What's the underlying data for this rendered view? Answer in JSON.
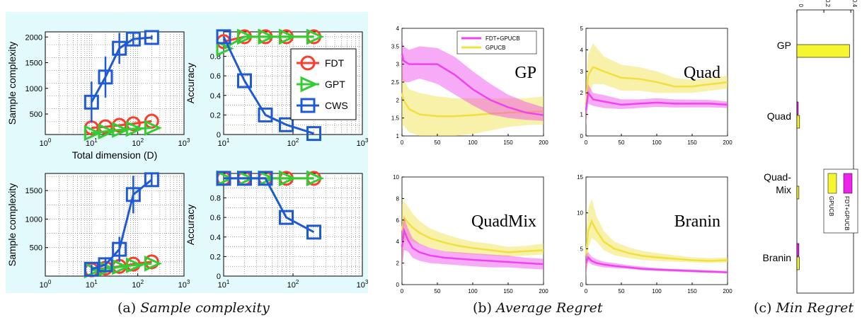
{
  "captions": {
    "a_prefix": "(a)",
    "a_text": "Sample complexity",
    "b_prefix": "(b)",
    "b_text": "Average Regret",
    "c_prefix": "(c)",
    "c_text": "Min Regret"
  },
  "chart_data": [
    {
      "id": "sc-top",
      "type": "line",
      "log_x": true,
      "xlim": [
        1,
        1000
      ],
      "ylim": [
        100,
        2100
      ],
      "xticks": [
        "10^0",
        "10^1",
        "10^2",
        "10^3"
      ],
      "yticks": [
        500,
        1000,
        1500,
        2000
      ],
      "xlabel": "Total dimension (D)",
      "ylabel": "Sample complexity",
      "grid": true,
      "series": [
        {
          "name": "FDT",
          "color": "#ff3b2a",
          "marker": "circle",
          "x": [
            10,
            20,
            40,
            80,
            200
          ],
          "y": [
            230,
            250,
            280,
            310,
            360
          ]
        },
        {
          "name": "GPT",
          "color": "#33cc33",
          "marker": "triangle",
          "x": [
            10,
            20,
            40,
            80,
            200
          ],
          "y": [
            130,
            160,
            190,
            210,
            230
          ]
        },
        {
          "name": "CWS",
          "color": "#1f5ad6",
          "marker": "square",
          "x": [
            10,
            20,
            40,
            80,
            200
          ],
          "y": [
            730,
            1220,
            1780,
            1960,
            1990
          ],
          "err": [
            400,
            400,
            300,
            120,
            40
          ]
        }
      ]
    },
    {
      "id": "acc-top",
      "type": "line",
      "log_x": true,
      "xlim": [
        10,
        1000
      ],
      "ylim": [
        0,
        1.05
      ],
      "xticks": [
        "10^1",
        "10^2",
        "10^3"
      ],
      "yticks": [
        0,
        0.2,
        0.4,
        0.6,
        0.8
      ],
      "ylabel": "Accuracy",
      "grid": true,
      "legend": [
        "FDT",
        "GPT",
        "CWS"
      ],
      "legend_position": "right",
      "series": [
        {
          "name": "FDT",
          "color": "#ff3b2a",
          "marker": "circle",
          "x": [
            10,
            20,
            40,
            80,
            200
          ],
          "y": [
            0.95,
            1.0,
            1.0,
            1.0,
            1.0
          ]
        },
        {
          "name": "GPT",
          "color": "#33cc33",
          "marker": "triangle",
          "x": [
            10,
            20,
            40,
            80,
            200
          ],
          "y": [
            0.88,
            1.0,
            1.0,
            1.0,
            1.0
          ]
        },
        {
          "name": "CWS",
          "color": "#1f5ad6",
          "marker": "square",
          "x": [
            10,
            20,
            40,
            80,
            200
          ],
          "y": [
            1.0,
            0.55,
            0.2,
            0.1,
            0.01
          ]
        }
      ]
    },
    {
      "id": "sc-bot",
      "type": "line",
      "log_x": true,
      "xlim": [
        1,
        1000
      ],
      "ylim": [
        0,
        1800
      ],
      "xticks": [
        "10^0",
        "10^1",
        "10^2",
        "10^3"
      ],
      "yticks": [
        500,
        1000,
        1500
      ],
      "ylabel": "Sample complexity",
      "grid": true,
      "series": [
        {
          "name": "FDT",
          "color": "#ff3b2a",
          "marker": "circle",
          "x": [
            10,
            20,
            40,
            80,
            200
          ],
          "y": [
            110,
            140,
            170,
            210,
            250
          ]
        },
        {
          "name": "GPT",
          "color": "#33cc33",
          "marker": "triangle",
          "x": [
            10,
            20,
            40,
            80,
            200
          ],
          "y": [
            100,
            130,
            160,
            190,
            220
          ]
        },
        {
          "name": "CWS",
          "color": "#1f5ad6",
          "marker": "square",
          "x": [
            10,
            20,
            40,
            80,
            200
          ],
          "y": [
            120,
            200,
            470,
            1430,
            1690
          ],
          "err": [
            80,
            130,
            220,
            330,
            120
          ]
        }
      ]
    },
    {
      "id": "acc-bot",
      "type": "line",
      "log_x": true,
      "xlim": [
        10,
        1000
      ],
      "ylim": [
        0,
        1.05
      ],
      "xticks": [
        "10^1",
        "10^2",
        "10^3"
      ],
      "yticks": [
        0,
        0.2,
        0.4,
        0.6,
        0.8
      ],
      "ylabel": "Accuracy",
      "grid": true,
      "series": [
        {
          "name": "FDT",
          "color": "#ff3b2a",
          "marker": "circle",
          "x": [
            10,
            20,
            40,
            80,
            200
          ],
          "y": [
            1.0,
            1.0,
            1.0,
            1.0,
            1.0
          ]
        },
        {
          "name": "GPT",
          "color": "#33cc33",
          "marker": "triangle",
          "x": [
            10,
            20,
            40,
            80,
            200
          ],
          "y": [
            1.0,
            1.0,
            1.0,
            1.0,
            1.0
          ]
        },
        {
          "name": "CWS",
          "color": "#1f5ad6",
          "marker": "square",
          "x": [
            10,
            20,
            40,
            80,
            200
          ],
          "y": [
            1.0,
            1.0,
            1.0,
            0.6,
            0.45
          ]
        }
      ]
    },
    {
      "id": "reg-gp",
      "type": "area",
      "title": "GP",
      "xlim": [
        0,
        200
      ],
      "ylim": [
        1,
        4
      ],
      "xticks": [
        0,
        50,
        100,
        150,
        200
      ],
      "yticks": [
        1,
        1.5,
        2,
        2.5,
        3,
        3.5,
        4
      ],
      "legend": [
        "FDT+GPUCB",
        "GPUCB"
      ],
      "legend_position": "top-left",
      "series": [
        {
          "name": "FDT+GPUCB",
          "color": "#ee44ee",
          "x": [
            0,
            2,
            10,
            25,
            50,
            75,
            100,
            125,
            150,
            175,
            200
          ],
          "mean": [
            3.3,
            3.1,
            3.0,
            3.0,
            3.0,
            2.7,
            2.3,
            2.0,
            1.8,
            1.65,
            1.58
          ],
          "lo": [
            2.6,
            2.5,
            2.5,
            2.6,
            2.45,
            2.15,
            1.85,
            1.6,
            1.5,
            1.45,
            1.42
          ],
          "hi": [
            3.7,
            3.5,
            3.4,
            3.5,
            3.45,
            3.2,
            2.8,
            2.45,
            2.15,
            1.95,
            1.8
          ]
        },
        {
          "name": "GPUCB",
          "color": "#f0e040",
          "x": [
            0,
            2,
            10,
            25,
            50,
            75,
            100,
            125,
            150,
            175,
            200
          ],
          "mean": [
            2.2,
            2.0,
            1.75,
            1.6,
            1.55,
            1.55,
            1.58,
            1.62,
            1.65,
            1.67,
            1.68
          ],
          "lo": [
            1.2,
            1.3,
            1.1,
            1.0,
            1.0,
            1.0,
            1.05,
            1.15,
            1.25,
            1.3,
            1.32
          ],
          "hi": [
            3.2,
            2.6,
            2.3,
            2.2,
            2.1,
            2.05,
            2.05,
            2.05,
            2.05,
            2.05,
            2.1
          ]
        }
      ]
    },
    {
      "id": "reg-quad",
      "type": "area",
      "title": "Quad",
      "xlim": [
        0,
        200
      ],
      "ylim": [
        0,
        5
      ],
      "xticks": [
        0,
        50,
        100,
        150,
        200
      ],
      "yticks": [
        0,
        1,
        2,
        3,
        4,
        5
      ],
      "series": [
        {
          "name": "FDT+GPUCB",
          "color": "#ee44ee",
          "x": [
            0,
            3,
            10,
            25,
            50,
            75,
            100,
            125,
            150,
            175,
            200
          ],
          "mean": [
            1.2,
            2.0,
            1.7,
            1.6,
            1.45,
            1.5,
            1.55,
            1.5,
            1.5,
            1.5,
            1.45
          ],
          "lo": [
            0.5,
            1.5,
            1.4,
            1.3,
            1.25,
            1.3,
            1.35,
            1.32,
            1.33,
            1.33,
            1.3
          ],
          "hi": [
            1.5,
            2.4,
            2.0,
            1.9,
            1.7,
            1.7,
            1.75,
            1.7,
            1.68,
            1.67,
            1.6
          ]
        },
        {
          "name": "GPUCB",
          "color": "#f0e040",
          "x": [
            0,
            3,
            10,
            25,
            50,
            75,
            100,
            125,
            150,
            175,
            200
          ],
          "mean": [
            1.5,
            2.8,
            3.2,
            3.0,
            2.7,
            2.65,
            2.5,
            2.3,
            2.3,
            2.4,
            2.5
          ],
          "lo": [
            0.5,
            1.7,
            2.4,
            2.4,
            2.1,
            2.1,
            2.0,
            2.0,
            2.0,
            2.1,
            2.2
          ],
          "hi": [
            2.5,
            3.8,
            4.3,
            3.7,
            3.3,
            3.2,
            3.0,
            2.7,
            2.6,
            2.7,
            2.8
          ]
        }
      ]
    },
    {
      "id": "reg-quadmix",
      "type": "area",
      "title": "QuadMix",
      "xlim": [
        0,
        200
      ],
      "ylim": [
        0,
        10
      ],
      "xticks": [
        0,
        50,
        100,
        150,
        200
      ],
      "yticks": [
        0,
        2,
        4,
        6,
        8,
        10
      ],
      "series": [
        {
          "name": "FDT+GPUCB",
          "color": "#ee44ee",
          "x": [
            0,
            3,
            8,
            15,
            25,
            40,
            60,
            80,
            100,
            125,
            150,
            175,
            200
          ],
          "mean": [
            3.5,
            5.0,
            4.2,
            3.4,
            3.0,
            2.7,
            2.5,
            2.4,
            2.3,
            2.2,
            2.1,
            2.0,
            1.9
          ],
          "lo": [
            1.5,
            3.2,
            3.1,
            2.5,
            2.2,
            2.0,
            1.9,
            1.8,
            1.7,
            1.6,
            1.6,
            1.5,
            1.4
          ],
          "hi": [
            5.0,
            6.3,
            5.3,
            4.3,
            3.8,
            3.4,
            3.1,
            3.0,
            2.9,
            2.8,
            2.7,
            2.5,
            2.4
          ]
        },
        {
          "name": "GPUCB",
          "color": "#f0e040",
          "x": [
            0,
            3,
            8,
            15,
            25,
            40,
            60,
            80,
            100,
            125,
            150,
            175,
            200
          ],
          "mean": [
            5.0,
            6.2,
            5.8,
            5.3,
            4.8,
            4.3,
            3.9,
            3.6,
            3.4,
            3.2,
            3.0,
            3.1,
            3.2
          ],
          "lo": [
            1.5,
            4.0,
            4.2,
            4.0,
            3.7,
            3.4,
            3.1,
            2.9,
            2.8,
            2.7,
            2.6,
            2.7,
            2.8
          ],
          "hi": [
            7.5,
            7.8,
            7.3,
            6.6,
            5.9,
            5.2,
            4.7,
            4.3,
            4.0,
            3.8,
            3.5,
            3.6,
            3.8
          ]
        }
      ]
    },
    {
      "id": "reg-branin",
      "type": "area",
      "title": "Branin",
      "xlim": [
        0,
        200
      ],
      "ylim": [
        0,
        15
      ],
      "xticks": [
        0,
        50,
        100,
        150,
        200
      ],
      "yticks": [
        0,
        5,
        10,
        15
      ],
      "series": [
        {
          "name": "FDT+GPUCB",
          "color": "#ee44ee",
          "x": [
            0,
            3,
            8,
            15,
            25,
            40,
            60,
            80,
            100,
            125,
            150,
            175,
            200
          ],
          "mean": [
            3.0,
            3.8,
            3.3,
            3.0,
            2.8,
            2.6,
            2.4,
            2.2,
            2.1,
            2.0,
            1.9,
            1.8,
            1.7
          ],
          "lo": [
            1.5,
            3.2,
            2.8,
            2.6,
            2.4,
            2.3,
            2.2,
            2.0,
            1.9,
            1.8,
            1.7,
            1.65,
            1.6
          ],
          "hi": [
            4.2,
            4.5,
            3.9,
            3.5,
            3.2,
            3.0,
            2.7,
            2.5,
            2.3,
            2.2,
            2.1,
            2.0,
            1.9
          ]
        },
        {
          "name": "GPUCB",
          "color": "#f0e040",
          "x": [
            0,
            3,
            8,
            15,
            25,
            40,
            60,
            80,
            100,
            125,
            150,
            175,
            200
          ],
          "mean": [
            4.0,
            7.5,
            8.8,
            7.5,
            6.0,
            5.0,
            4.4,
            4.0,
            3.8,
            3.6,
            3.4,
            3.3,
            3.4
          ],
          "lo": [
            1.0,
            5.0,
            6.5,
            6.0,
            4.8,
            4.1,
            3.7,
            3.4,
            3.3,
            3.2,
            3.1,
            3.0,
            3.1
          ],
          "hi": [
            7.0,
            10.5,
            12.0,
            9.5,
            7.5,
            6.0,
            5.2,
            4.7,
            4.4,
            4.1,
            3.8,
            3.7,
            3.8
          ]
        }
      ]
    },
    {
      "id": "min-regret",
      "type": "bar",
      "orientation": "horizontal",
      "xlim": [
        0,
        0.42
      ],
      "xticks": [
        0,
        0.2,
        0.4
      ],
      "tick_labels_rotated": true,
      "categories": [
        "GP",
        "Quad",
        "Quad-Mix",
        "Branin"
      ],
      "legend": [
        "FDT+GPUCB",
        "GPUCB"
      ],
      "legend_position": "right",
      "series": [
        {
          "name": "FDT+GPUCB",
          "color": "#ee22ee",
          "values": [
            0.0,
            0.01,
            0.0,
            0.015
          ]
        },
        {
          "name": "GPUCB",
          "color": "#f5f530",
          "values": [
            0.39,
            0.02,
            0.015,
            0.018
          ]
        }
      ]
    }
  ]
}
